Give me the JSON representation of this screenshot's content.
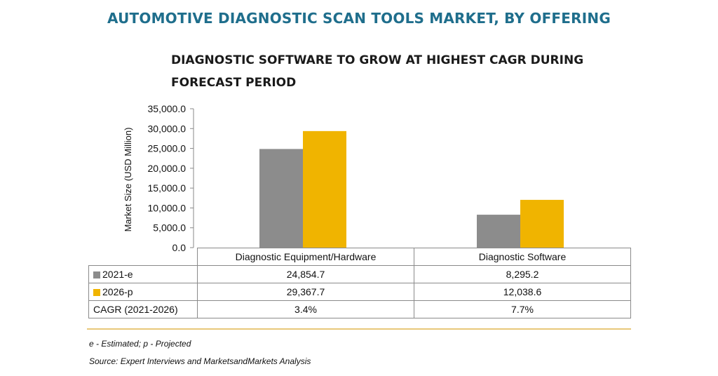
{
  "colors": {
    "title": "#1f6e8c",
    "series_2021": "#8c8c8c",
    "series_2026": "#f0b400",
    "rule": "#e8c87a"
  },
  "chart_data": {
    "type": "bar",
    "title": "AUTOMOTIVE DIAGNOSTIC SCAN TOOLS MARKET, BY OFFERING",
    "subtitle": "DIAGNOSTIC SOFTWARE TO GROW AT HIGHEST CAGR DURING FORECAST PERIOD",
    "ylabel": "Market Size (USD Million)",
    "ylim": [
      0,
      35000
    ],
    "yticks": [
      "35,000.0",
      "30,000.0",
      "25,000.0",
      "20,000.0",
      "15,000.0",
      "10,000.0",
      "5,000.0",
      "0.0"
    ],
    "categories": [
      "Diagnostic Equipment/Hardware",
      "Diagnostic Software"
    ],
    "series": [
      {
        "name": "2021-e",
        "values": [
          24854.7,
          8295.2
        ],
        "labels": [
          "24,854.7",
          "8,295.2"
        ]
      },
      {
        "name": "2026-p",
        "values": [
          29367.7,
          12038.6
        ],
        "labels": [
          "29,367.7",
          "12,038.6"
        ]
      }
    ],
    "cagr": {
      "label": "CAGR (2021-2026)",
      "values": [
        "3.4%",
        "7.7%"
      ]
    },
    "grid": false,
    "legend": "in data table"
  },
  "footnotes": {
    "legend_note": "e - Estimated; p - Projected",
    "source": "Source: Expert Interviews and MarketsandMarkets Analysis"
  }
}
